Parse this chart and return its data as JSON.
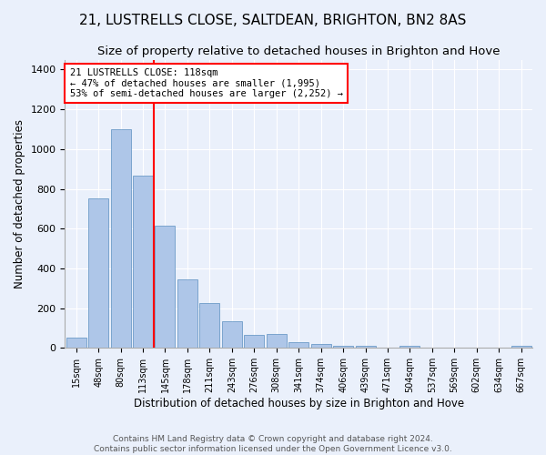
{
  "title1": "21, LUSTRELLS CLOSE, SALTDEAN, BRIGHTON, BN2 8AS",
  "title2": "Size of property relative to detached houses in Brighton and Hove",
  "xlabel": "Distribution of detached houses by size in Brighton and Hove",
  "ylabel": "Number of detached properties",
  "categories": [
    "15sqm",
    "48sqm",
    "80sqm",
    "113sqm",
    "145sqm",
    "178sqm",
    "211sqm",
    "243sqm",
    "276sqm",
    "308sqm",
    "341sqm",
    "374sqm",
    "406sqm",
    "439sqm",
    "471sqm",
    "504sqm",
    "537sqm",
    "569sqm",
    "602sqm",
    "634sqm",
    "667sqm"
  ],
  "bar_heights": [
    50,
    750,
    1100,
    865,
    615,
    345,
    225,
    135,
    65,
    70,
    30,
    22,
    10,
    10,
    0,
    10,
    0,
    0,
    0,
    0,
    10
  ],
  "bar_color": "#aec6e8",
  "bar_edge_color": "#5a8fc0",
  "vline_color": "red",
  "annotation_text": "21 LUSTRELLS CLOSE: 118sqm\n← 47% of detached houses are smaller (1,995)\n53% of semi-detached houses are larger (2,252) →",
  "annotation_box_color": "white",
  "annotation_box_edge": "red",
  "ylim": [
    0,
    1450
  ],
  "yticks": [
    0,
    200,
    400,
    600,
    800,
    1000,
    1200,
    1400
  ],
  "footer": "Contains HM Land Registry data © Crown copyright and database right 2024.\nContains public sector information licensed under the Open Government Licence v3.0.",
  "background_color": "#eaf0fb",
  "grid_color": "white",
  "title1_fontsize": 11,
  "title2_fontsize": 9.5,
  "xlabel_fontsize": 8.5,
  "ylabel_fontsize": 8.5,
  "footer_fontsize": 6.5
}
